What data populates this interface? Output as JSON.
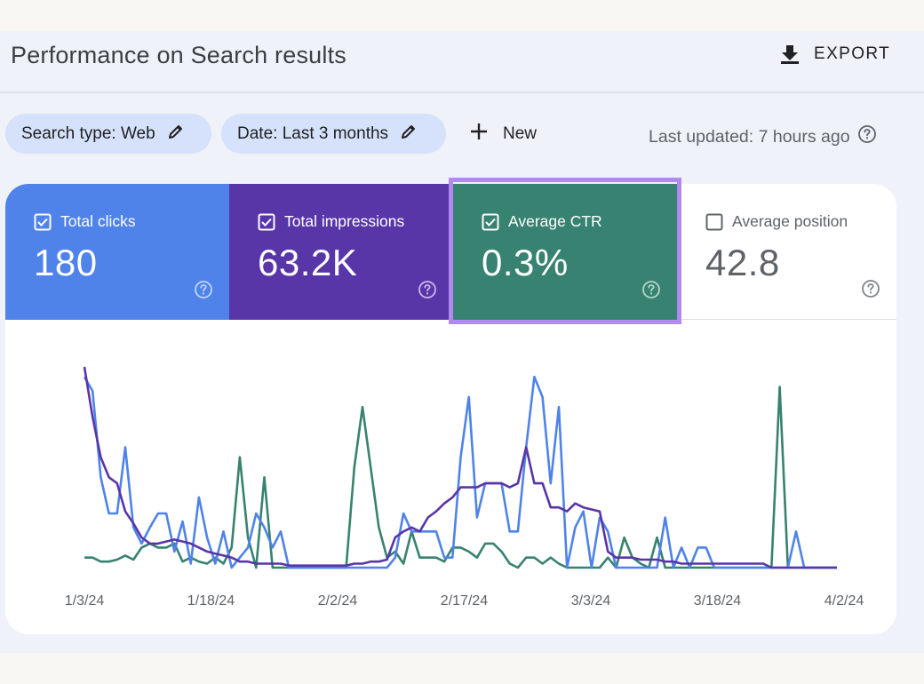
{
  "header": {
    "title": "Performance on Search results",
    "export_label": "EXPORT"
  },
  "filters": {
    "search_type": "Search type: Web",
    "date": "Date: Last 3 months",
    "new_label": "New",
    "last_updated": "Last updated: 7 hours ago"
  },
  "metrics": [
    {
      "label": "Total clicks",
      "value": "180",
      "checked": true,
      "color": "#4f83e9"
    },
    {
      "label": "Total impressions",
      "value": "63.2K",
      "checked": true,
      "color": "#5936a8"
    },
    {
      "label": "Average CTR",
      "value": "0.3%",
      "checked": true,
      "color": "#378270"
    },
    {
      "label": "Average position",
      "value": "42.8",
      "checked": false,
      "color": "#ffffff"
    }
  ],
  "colors": {
    "clicks": "#4f83e9",
    "impressions": "#5936a8",
    "ctr": "#378270",
    "highlight": "#b189f0",
    "panel_bg": "#eff2f8"
  },
  "chart_data": {
    "type": "line",
    "x_tick_labels": [
      "1/3/24",
      "1/18/24",
      "2/2/24",
      "2/17/24",
      "3/3/24",
      "3/18/24",
      "4/2/24"
    ],
    "x_range": [
      "1/1/24",
      "4/3/24"
    ],
    "y_scale": "relative (no y-axis shown)",
    "grid": false,
    "series": [
      {
        "name": "Total clicks",
        "color": "#4f83e9",
        "points": [
          [
            1,
            0.95
          ],
          [
            2,
            0.88
          ],
          [
            3,
            0.45
          ],
          [
            4,
            0.27
          ],
          [
            5,
            0.27
          ],
          [
            6,
            0.6
          ],
          [
            7,
            0.2
          ],
          [
            8,
            0.12
          ],
          [
            9,
            0.2
          ],
          [
            10,
            0.27
          ],
          [
            11,
            0.27
          ],
          [
            12,
            0.08
          ],
          [
            13,
            0.23
          ],
          [
            14,
            0.02
          ],
          [
            15,
            0.35
          ],
          [
            16,
            0.15
          ],
          [
            17,
            0.02
          ],
          [
            18,
            0.18
          ],
          [
            19,
            0.0
          ],
          [
            20,
            0.05
          ],
          [
            21,
            0.1
          ],
          [
            22,
            0.27
          ],
          [
            23,
            0.2
          ],
          [
            24,
            0.1
          ],
          [
            25,
            0.18
          ],
          [
            26,
            0.0
          ],
          [
            27,
            0.0
          ],
          [
            28,
            0.0
          ],
          [
            29,
            0.0
          ],
          [
            30,
            0.0
          ],
          [
            31,
            0.0
          ],
          [
            32,
            0.0
          ],
          [
            33,
            0.0
          ],
          [
            34,
            0.0
          ],
          [
            35,
            0.0
          ],
          [
            36,
            0.0
          ],
          [
            37,
            0.0
          ],
          [
            38,
            0.0
          ],
          [
            39,
            0.05
          ],
          [
            40,
            0.27
          ],
          [
            41,
            0.18
          ],
          [
            42,
            0.18
          ],
          [
            43,
            0.18
          ],
          [
            44,
            0.18
          ],
          [
            45,
            0.05
          ],
          [
            46,
            0.05
          ],
          [
            47,
            0.55
          ],
          [
            48,
            0.85
          ],
          [
            49,
            0.25
          ],
          [
            50,
            0.42
          ],
          [
            51,
            0.42
          ],
          [
            52,
            0.42
          ],
          [
            53,
            0.18
          ],
          [
            54,
            0.18
          ],
          [
            55,
            0.6
          ],
          [
            56,
            0.95
          ],
          [
            57,
            0.85
          ],
          [
            58,
            0.42
          ],
          [
            59,
            0.8
          ],
          [
            60,
            0.0
          ],
          [
            61,
            0.2
          ],
          [
            62,
            0.28
          ],
          [
            63,
            0.0
          ],
          [
            64,
            0.25
          ],
          [
            65,
            0.18
          ],
          [
            66,
            0.0
          ],
          [
            67,
            0.0
          ],
          [
            68,
            0.0
          ],
          [
            69,
            0.0
          ],
          [
            70,
            0.0
          ],
          [
            71,
            0.0
          ],
          [
            72,
            0.25
          ],
          [
            73,
            0.0
          ],
          [
            74,
            0.1
          ],
          [
            75,
            0.0
          ],
          [
            76,
            0.1
          ],
          [
            77,
            0.1
          ],
          [
            78,
            0.0
          ],
          [
            79,
            0.0
          ],
          [
            80,
            0.0
          ],
          [
            81,
            0.0
          ],
          [
            82,
            0.0
          ],
          [
            83,
            0.0
          ],
          [
            84,
            0.0
          ],
          [
            85,
            0.0
          ],
          [
            86,
            0.0
          ],
          [
            87,
            0.0
          ],
          [
            88,
            0.18
          ],
          [
            89,
            0.0
          ],
          [
            90,
            0.0
          ],
          [
            91,
            0.0
          ],
          [
            92,
            0.0
          ],
          [
            93,
            0.0
          ]
        ]
      },
      {
        "name": "Total impressions",
        "color": "#5936a8",
        "points": [
          [
            1,
            1.0
          ],
          [
            2,
            0.75
          ],
          [
            3,
            0.55
          ],
          [
            4,
            0.45
          ],
          [
            5,
            0.42
          ],
          [
            6,
            0.28
          ],
          [
            7,
            0.22
          ],
          [
            8,
            0.15
          ],
          [
            9,
            0.12
          ],
          [
            10,
            0.12
          ],
          [
            11,
            0.13
          ],
          [
            12,
            0.14
          ],
          [
            13,
            0.13
          ],
          [
            14,
            0.12
          ],
          [
            15,
            0.1
          ],
          [
            16,
            0.08
          ],
          [
            17,
            0.07
          ],
          [
            18,
            0.06
          ],
          [
            19,
            0.05
          ],
          [
            20,
            0.03
          ],
          [
            21,
            0.03
          ],
          [
            22,
            0.02
          ],
          [
            23,
            0.02
          ],
          [
            24,
            0.02
          ],
          [
            25,
            0.02
          ],
          [
            26,
            0.01
          ],
          [
            27,
            0.01
          ],
          [
            28,
            0.01
          ],
          [
            29,
            0.01
          ],
          [
            30,
            0.01
          ],
          [
            31,
            0.01
          ],
          [
            32,
            0.01
          ],
          [
            33,
            0.01
          ],
          [
            34,
            0.02
          ],
          [
            35,
            0.02
          ],
          [
            36,
            0.03
          ],
          [
            37,
            0.03
          ],
          [
            38,
            0.04
          ],
          [
            39,
            0.15
          ],
          [
            40,
            0.18
          ],
          [
            41,
            0.2
          ],
          [
            42,
            0.18
          ],
          [
            43,
            0.25
          ],
          [
            44,
            0.28
          ],
          [
            45,
            0.32
          ],
          [
            46,
            0.35
          ],
          [
            47,
            0.4
          ],
          [
            48,
            0.4
          ],
          [
            49,
            0.4
          ],
          [
            50,
            0.42
          ],
          [
            51,
            0.42
          ],
          [
            52,
            0.42
          ],
          [
            53,
            0.4
          ],
          [
            54,
            0.42
          ],
          [
            55,
            0.6
          ],
          [
            56,
            0.42
          ],
          [
            57,
            0.42
          ],
          [
            58,
            0.3
          ],
          [
            59,
            0.3
          ],
          [
            60,
            0.28
          ],
          [
            61,
            0.32
          ],
          [
            62,
            0.3
          ],
          [
            63,
            0.29
          ],
          [
            64,
            0.28
          ],
          [
            65,
            0.08
          ],
          [
            66,
            0.05
          ],
          [
            67,
            0.05
          ],
          [
            68,
            0.05
          ],
          [
            69,
            0.04
          ],
          [
            70,
            0.04
          ],
          [
            71,
            0.04
          ],
          [
            72,
            0.03
          ],
          [
            73,
            0.03
          ],
          [
            74,
            0.02
          ],
          [
            75,
            0.02
          ],
          [
            76,
            0.02
          ],
          [
            77,
            0.02
          ],
          [
            78,
            0.02
          ],
          [
            79,
            0.02
          ],
          [
            80,
            0.02
          ],
          [
            81,
            0.02
          ],
          [
            82,
            0.02
          ],
          [
            83,
            0.02
          ],
          [
            84,
            0.02
          ],
          [
            85,
            0.0
          ],
          [
            86,
            0.0
          ],
          [
            87,
            0.0
          ],
          [
            88,
            0.0
          ],
          [
            89,
            0.0
          ],
          [
            90,
            0.0
          ],
          [
            91,
            0.0
          ],
          [
            92,
            0.0
          ],
          [
            93,
            0.0
          ]
        ]
      },
      {
        "name": "Average CTR",
        "color": "#378270",
        "points": [
          [
            1,
            0.05
          ],
          [
            2,
            0.05
          ],
          [
            3,
            0.03
          ],
          [
            4,
            0.03
          ],
          [
            5,
            0.04
          ],
          [
            6,
            0.06
          ],
          [
            7,
            0.04
          ],
          [
            8,
            0.1
          ],
          [
            9,
            0.12
          ],
          [
            10,
            0.1
          ],
          [
            11,
            0.1
          ],
          [
            12,
            0.12
          ],
          [
            13,
            0.03
          ],
          [
            14,
            0.05
          ],
          [
            15,
            0.03
          ],
          [
            16,
            0.02
          ],
          [
            17,
            0.05
          ],
          [
            18,
            0.02
          ],
          [
            19,
            0.1
          ],
          [
            20,
            0.55
          ],
          [
            21,
            0.15
          ],
          [
            22,
            0.0
          ],
          [
            23,
            0.45
          ],
          [
            24,
            0.0
          ],
          [
            25,
            0.0
          ],
          [
            26,
            0.0
          ],
          [
            27,
            0.0
          ],
          [
            28,
            0.0
          ],
          [
            29,
            0.0
          ],
          [
            30,
            0.0
          ],
          [
            31,
            0.0
          ],
          [
            32,
            0.0
          ],
          [
            33,
            0.0
          ],
          [
            34,
            0.5
          ],
          [
            35,
            0.8
          ],
          [
            36,
            0.5
          ],
          [
            37,
            0.2
          ],
          [
            38,
            0.05
          ],
          [
            39,
            0.08
          ],
          [
            40,
            0.02
          ],
          [
            41,
            0.18
          ],
          [
            42,
            0.05
          ],
          [
            43,
            0.05
          ],
          [
            44,
            0.05
          ],
          [
            45,
            0.03
          ],
          [
            46,
            0.1
          ],
          [
            47,
            0.1
          ],
          [
            48,
            0.08
          ],
          [
            49,
            0.05
          ],
          [
            50,
            0.12
          ],
          [
            51,
            0.12
          ],
          [
            52,
            0.08
          ],
          [
            53,
            0.02
          ],
          [
            54,
            0.0
          ],
          [
            55,
            0.05
          ],
          [
            56,
            0.05
          ],
          [
            57,
            0.02
          ],
          [
            58,
            0.05
          ],
          [
            59,
            0.02
          ],
          [
            60,
            0.0
          ],
          [
            61,
            0.0
          ],
          [
            62,
            0.0
          ],
          [
            63,
            0.0
          ],
          [
            64,
            0.0
          ],
          [
            65,
            0.05
          ],
          [
            66,
            0.0
          ],
          [
            67,
            0.15
          ],
          [
            68,
            0.05
          ],
          [
            69,
            0.02
          ],
          [
            70,
            0.0
          ],
          [
            71,
            0.15
          ],
          [
            72,
            0.0
          ],
          [
            73,
            0.0
          ],
          [
            74,
            0.0
          ],
          [
            75,
            0.0
          ],
          [
            76,
            0.0
          ],
          [
            77,
            0.0
          ],
          [
            78,
            0.0
          ],
          [
            79,
            0.0
          ],
          [
            80,
            0.0
          ],
          [
            81,
            0.0
          ],
          [
            82,
            0.0
          ],
          [
            83,
            0.0
          ],
          [
            84,
            0.0
          ],
          [
            85,
            0.0
          ],
          [
            86,
            0.9
          ],
          [
            87,
            0.0
          ],
          [
            88,
            0.0
          ],
          [
            89,
            0.0
          ],
          [
            90,
            0.0
          ],
          [
            91,
            0.0
          ],
          [
            92,
            0.0
          ],
          [
            93,
            0.0
          ]
        ]
      }
    ]
  }
}
